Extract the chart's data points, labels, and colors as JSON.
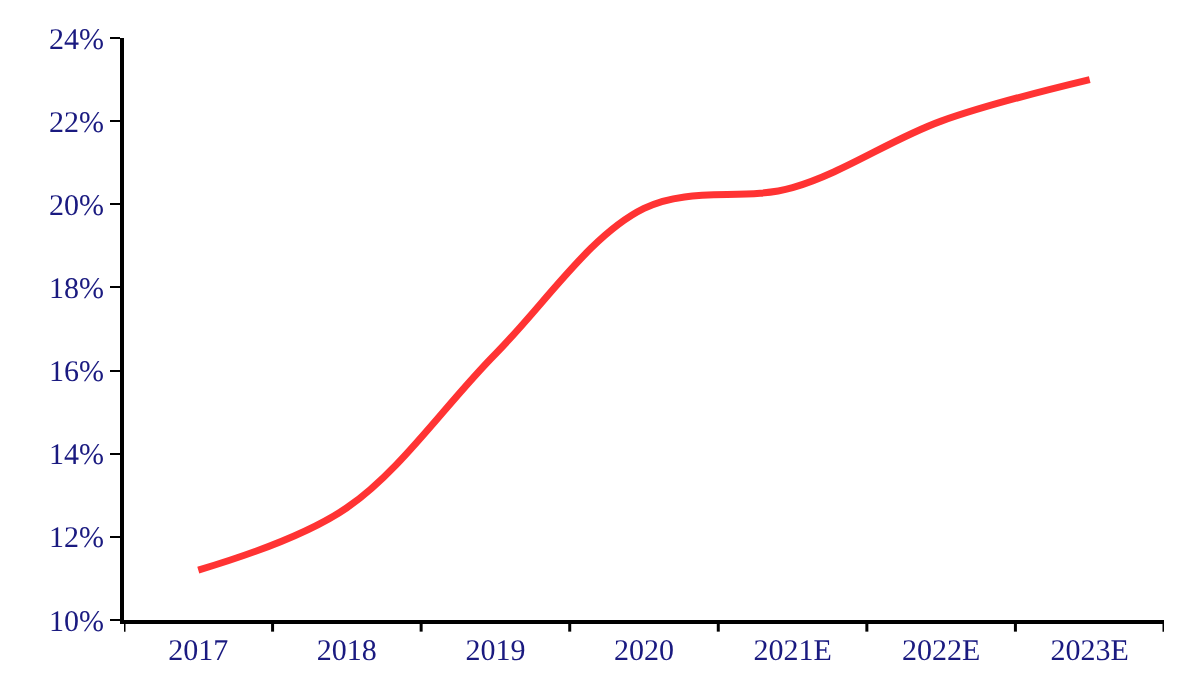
{
  "chart_data": {
    "type": "line",
    "categories": [
      "2017",
      "2018",
      "2019",
      "2020",
      "2021E",
      "2022E",
      "2023E"
    ],
    "series": [
      {
        "color": "#ff3333",
        "values": [
          11.2,
          12.7,
          16.4,
          19.9,
          20.4,
          22.0,
          23.0
        ]
      }
    ],
    "ylim": [
      10,
      24
    ],
    "yticks": [
      {
        "value": 10,
        "label": "10%"
      },
      {
        "value": 12,
        "label": "12%"
      },
      {
        "value": 14,
        "label": "14%"
      },
      {
        "value": 16,
        "label": "16%"
      },
      {
        "value": 18,
        "label": "18%"
      },
      {
        "value": 20,
        "label": "20%"
      },
      {
        "value": 22,
        "label": "22%"
      },
      {
        "value": 24,
        "label": "24%"
      }
    ],
    "marker": "none",
    "line_style": "solid"
  }
}
